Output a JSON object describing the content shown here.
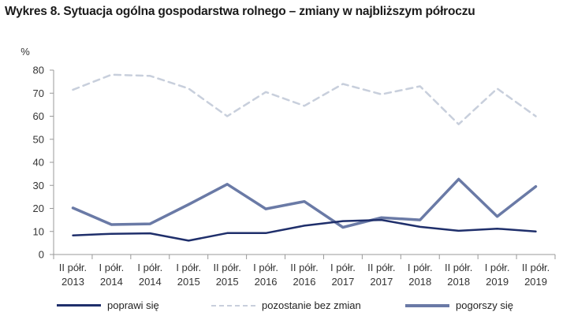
{
  "title": "Wykres 8. Sytuacja ogólna gospodarstwa rolnego – zmiany w najbliższym półroczu",
  "chart_data": {
    "type": "line",
    "title": "Wykres 8. Sytuacja ogólna gospodarstwa rolnego – zmiany w najbliższym półroczu",
    "ylabel": "%",
    "xlabel": "",
    "ylim": [
      0,
      80
    ],
    "yticks": [
      "0",
      "10",
      "20",
      "30",
      "40",
      "50",
      "60",
      "70",
      "80"
    ],
    "categories": [
      [
        "II półr.",
        "2013"
      ],
      [
        "I półr.",
        "2014"
      ],
      [
        "I półr.",
        "2014"
      ],
      [
        "I półr.",
        "2015"
      ],
      [
        "II półr.",
        "2015"
      ],
      [
        "I półr.",
        "2016"
      ],
      [
        "II półr.",
        "2016"
      ],
      [
        "I półr.",
        "2017"
      ],
      [
        "II półr.",
        "2017"
      ],
      [
        "I półr.",
        "2018"
      ],
      [
        "II półr.",
        "2018"
      ],
      [
        "I półr.",
        "2019"
      ],
      [
        "II półr.",
        "2019"
      ]
    ],
    "grid": false,
    "legend_position": "bottom",
    "series": [
      {
        "name": "poprawi się",
        "color": "#1f2f6b",
        "style": "solid",
        "values": [
          8.3,
          9.0,
          9.2,
          6.0,
          9.3,
          9.3,
          12.5,
          14.5,
          15.0,
          12.0,
          10.3,
          11.2,
          10.0
        ]
      },
      {
        "name": "pozostanie bez zmian",
        "color": "#c8cfdc",
        "style": "dashed",
        "values": [
          71.5,
          78.0,
          77.5,
          72.0,
          60.0,
          70.5,
          64.5,
          74.0,
          69.5,
          73.0,
          56.5,
          72.0,
          60.0
        ]
      },
      {
        "name": "pogorszy się",
        "color": "#6a7aa6",
        "style": "solid",
        "values": [
          20.2,
          13.0,
          13.3,
          21.7,
          30.5,
          19.8,
          23.0,
          11.8,
          16.0,
          15.0,
          32.7,
          16.5,
          29.5
        ]
      }
    ]
  }
}
